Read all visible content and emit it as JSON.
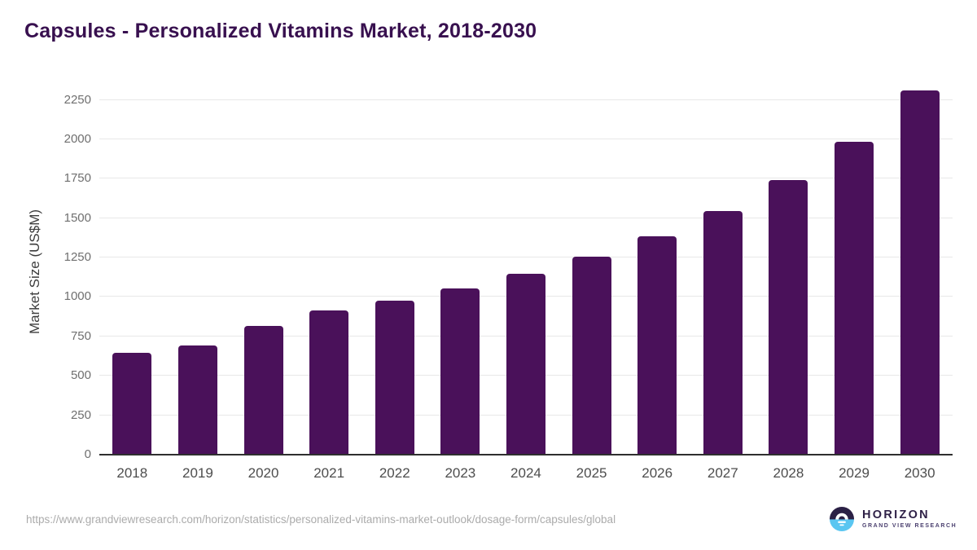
{
  "header": {
    "title": "Capsules - Personalized Vitamins Market, 2018-2030"
  },
  "chart_data": {
    "type": "bar",
    "title": "Capsules - Personalized Vitamins Market, 2018-2030",
    "categories": [
      "2018",
      "2019",
      "2020",
      "2021",
      "2022",
      "2023",
      "2024",
      "2025",
      "2026",
      "2027",
      "2028",
      "2029",
      "2030"
    ],
    "values": [
      645,
      690,
      815,
      915,
      975,
      1055,
      1145,
      1255,
      1385,
      1545,
      1740,
      1985,
      2310
    ],
    "xlabel": "",
    "ylabel": "Market Size (US$M)",
    "ylim": [
      0,
      2325
    ],
    "yticks": [
      0,
      250,
      500,
      750,
      1000,
      1250,
      1500,
      1750,
      2000,
      2250
    ],
    "grid": true,
    "legend_position": "none",
    "bar_color": "#4a115a"
  },
  "footer": {
    "source_url": "https://www.grandviewresearch.com/horizon/statistics/personalized-vitamins-market-outlook/dosage-form/capsules/global"
  },
  "logo": {
    "brand": "HORIZON",
    "tagline": "GRAND VIEW RESEARCH",
    "icon": "sun-horizon-icon",
    "icon_dark_color": "#2b2045",
    "icon_blue_color": "#5ac6f1"
  },
  "colors": {
    "title": "#38104f",
    "bar": "#4a115a",
    "gridline": "#e8e8e8",
    "axis_line": "#2f2f2f",
    "y_tick": "#6f6f6f",
    "x_tick": "#4d4d4d",
    "y_label": "#3c3c3c",
    "footer": "#ababab"
  }
}
